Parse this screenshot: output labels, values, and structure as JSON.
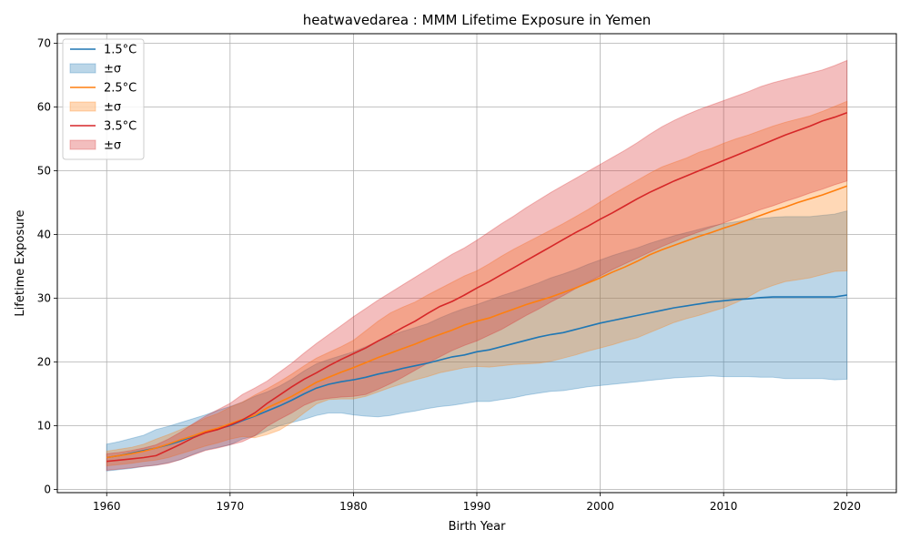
{
  "chart_data": {
    "type": "area",
    "title": "heatwavedarea : MMM Lifetime Exposure in Yemen",
    "xlabel": "Birth Year",
    "ylabel": "Lifetime Exposure",
    "xlim": [
      1956,
      2024
    ],
    "ylim": [
      -0.5,
      71.5
    ],
    "xticks": [
      1960,
      1970,
      1980,
      1990,
      2000,
      2010,
      2020
    ],
    "yticks": [
      0,
      10,
      20,
      30,
      40,
      50,
      60,
      70
    ],
    "grid": true,
    "legend_position": "upper-left",
    "x": [
      1960,
      1961,
      1962,
      1963,
      1964,
      1965,
      1966,
      1967,
      1968,
      1969,
      1970,
      1971,
      1972,
      1973,
      1974,
      1975,
      1976,
      1977,
      1978,
      1979,
      1980,
      1981,
      1982,
      1983,
      1984,
      1985,
      1986,
      1987,
      1988,
      1989,
      1990,
      1991,
      1992,
      1993,
      1994,
      1995,
      1996,
      1997,
      1998,
      1999,
      2000,
      2001,
      2002,
      2003,
      2004,
      2005,
      2006,
      2007,
      2008,
      2009,
      2010,
      2011,
      2012,
      2013,
      2014,
      2015,
      2016,
      2017,
      2018,
      2019,
      2020
    ],
    "series": [
      {
        "name": "1.5°C",
        "band_label": "±σ",
        "color": "#1f77b4",
        "mean": [
          5.0,
          5.3,
          5.7,
          6.1,
          6.5,
          7.0,
          7.6,
          8.3,
          9.0,
          9.5,
          10.0,
          10.8,
          11.5,
          12.3,
          13.1,
          14.0,
          15.0,
          15.9,
          16.5,
          16.9,
          17.2,
          17.6,
          18.1,
          18.5,
          19.0,
          19.4,
          19.8,
          20.3,
          20.8,
          21.1,
          21.6,
          21.9,
          22.4,
          22.9,
          23.4,
          23.9,
          24.3,
          24.6,
          25.1,
          25.6,
          26.1,
          26.5,
          26.9,
          27.3,
          27.7,
          28.1,
          28.5,
          28.8,
          29.1,
          29.4,
          29.6,
          29.8,
          29.9,
          30.1,
          30.2,
          30.2,
          30.2,
          30.2,
          30.2,
          30.2,
          30.5
        ],
        "upper": [
          7.1,
          7.5,
          8.0,
          8.5,
          9.4,
          9.9,
          10.5,
          11.1,
          11.7,
          12.4,
          13.0,
          13.7,
          14.6,
          15.3,
          16.2,
          17.3,
          18.6,
          19.7,
          20.4,
          21.0,
          21.6,
          22.4,
          23.3,
          24.1,
          24.8,
          25.4,
          26.0,
          26.9,
          27.7,
          28.4,
          29.0,
          29.7,
          30.4,
          31.0,
          31.7,
          32.4,
          33.2,
          33.8,
          34.5,
          35.3,
          36.0,
          36.7,
          37.3,
          37.9,
          38.6,
          39.2,
          39.8,
          40.3,
          40.8,
          41.3,
          41.7,
          42.0,
          42.3,
          42.5,
          42.7,
          42.8,
          42.8,
          42.8,
          43.0,
          43.2,
          43.7
        ],
        "lower": [
          2.9,
          3.1,
          3.3,
          3.6,
          3.8,
          4.2,
          4.7,
          5.5,
          6.2,
          6.6,
          7.0,
          7.9,
          8.4,
          9.2,
          10.0,
          10.5,
          11.0,
          11.6,
          12.0,
          12.0,
          11.7,
          11.5,
          11.4,
          11.6,
          12.0,
          12.3,
          12.7,
          13.0,
          13.2,
          13.5,
          13.8,
          13.8,
          14.1,
          14.4,
          14.8,
          15.1,
          15.4,
          15.5,
          15.8,
          16.1,
          16.3,
          16.5,
          16.7,
          16.9,
          17.1,
          17.3,
          17.5,
          17.6,
          17.7,
          17.8,
          17.7,
          17.7,
          17.7,
          17.6,
          17.6,
          17.4,
          17.4,
          17.4,
          17.4,
          17.2,
          17.3
        ]
      },
      {
        "name": "2.5°C",
        "band_label": "±σ",
        "color": "#ff7f0e",
        "mean": [
          5.0,
          5.3,
          5.6,
          6.0,
          6.5,
          7.1,
          7.8,
          8.4,
          9.1,
          9.6,
          10.3,
          11.0,
          11.6,
          12.8,
          13.7,
          14.6,
          15.7,
          16.8,
          17.6,
          18.4,
          19.1,
          19.9,
          20.7,
          21.4,
          22.1,
          22.8,
          23.6,
          24.3,
          25.0,
          25.8,
          26.4,
          26.9,
          27.6,
          28.3,
          29.0,
          29.6,
          30.2,
          30.9,
          31.6,
          32.4,
          33.2,
          34.1,
          34.9,
          35.8,
          36.8,
          37.6,
          38.3,
          39.0,
          39.7,
          40.3,
          41.0,
          41.6,
          42.3,
          43.0,
          43.7,
          44.3,
          45.0,
          45.6,
          46.2,
          46.9,
          47.6
        ],
        "upper": [
          6.0,
          6.3,
          6.6,
          7.1,
          7.9,
          8.6,
          9.4,
          10.2,
          11.2,
          11.9,
          12.9,
          13.7,
          14.8,
          15.8,
          16.9,
          18.1,
          19.4,
          20.6,
          21.5,
          22.4,
          23.4,
          24.9,
          26.4,
          27.7,
          28.6,
          29.4,
          30.5,
          31.5,
          32.5,
          33.5,
          34.3,
          35.4,
          36.6,
          37.7,
          38.7,
          39.7,
          40.7,
          41.7,
          42.8,
          43.9,
          45.1,
          46.3,
          47.4,
          48.5,
          49.6,
          50.6,
          51.3,
          52.0,
          52.9,
          53.5,
          54.3,
          55.0,
          55.6,
          56.3,
          57.0,
          57.6,
          58.1,
          58.6,
          59.3,
          60.1,
          60.9
        ],
        "lower": [
          3.7,
          3.9,
          4.1,
          4.4,
          4.6,
          5.0,
          5.6,
          6.2,
          6.8,
          7.3,
          7.9,
          8.3,
          8.1,
          8.6,
          9.3,
          10.5,
          12.0,
          13.4,
          14.1,
          14.2,
          14.2,
          14.6,
          15.3,
          16.0,
          16.6,
          17.2,
          17.7,
          18.3,
          18.7,
          19.1,
          19.3,
          19.2,
          19.4,
          19.6,
          19.7,
          19.8,
          20.1,
          20.6,
          21.1,
          21.7,
          22.2,
          22.7,
          23.3,
          23.8,
          24.6,
          25.4,
          26.2,
          26.8,
          27.3,
          27.9,
          28.5,
          29.3,
          30.2,
          31.3,
          32.0,
          32.6,
          32.9,
          33.2,
          33.7,
          34.2,
          34.3
        ]
      },
      {
        "name": "3.5°C",
        "band_label": "±σ",
        "color": "#d62728",
        "mean": [
          4.4,
          4.6,
          4.8,
          5.0,
          5.3,
          6.2,
          7.1,
          8.1,
          8.9,
          9.4,
          10.1,
          10.9,
          12.0,
          13.5,
          14.8,
          16.1,
          17.3,
          18.3,
          19.4,
          20.4,
          21.3,
          22.2,
          23.3,
          24.3,
          25.4,
          26.4,
          27.6,
          28.7,
          29.5,
          30.5,
          31.6,
          32.6,
          33.7,
          34.8,
          35.9,
          37.0,
          38.1,
          39.2,
          40.3,
          41.3,
          42.4,
          43.4,
          44.5,
          45.6,
          46.6,
          47.5,
          48.4,
          49.2,
          50.0,
          50.8,
          51.6,
          52.4,
          53.2,
          54.0,
          54.8,
          55.6,
          56.3,
          57.0,
          57.8,
          58.4,
          59.1
        ],
        "upper": [
          5.6,
          5.8,
          6.1,
          6.5,
          7.0,
          7.9,
          9.0,
          10.3,
          11.5,
          12.5,
          13.5,
          14.9,
          15.9,
          17.0,
          18.4,
          19.8,
          21.4,
          22.9,
          24.3,
          25.7,
          27.1,
          28.4,
          29.7,
          30.9,
          32.1,
          33.3,
          34.5,
          35.7,
          36.9,
          37.9,
          39.1,
          40.4,
          41.7,
          42.9,
          44.2,
          45.4,
          46.6,
          47.7,
          48.8,
          49.9,
          51.0,
          52.1,
          53.2,
          54.4,
          55.7,
          56.9,
          57.9,
          58.8,
          59.6,
          60.3,
          61.0,
          61.7,
          62.4,
          63.2,
          63.8,
          64.3,
          64.8,
          65.3,
          65.8,
          66.5,
          67.3
        ],
        "lower": [
          3.0,
          3.2,
          3.4,
          3.6,
          3.8,
          4.1,
          4.7,
          5.4,
          6.1,
          6.5,
          7.0,
          7.5,
          8.4,
          9.9,
          11.0,
          12.0,
          13.2,
          14.0,
          14.3,
          14.5,
          14.6,
          14.9,
          15.7,
          16.6,
          17.6,
          18.7,
          19.8,
          20.8,
          21.8,
          22.6,
          23.3,
          24.2,
          25.1,
          26.2,
          27.3,
          28.3,
          29.4,
          30.4,
          31.5,
          32.5,
          33.5,
          34.5,
          35.4,
          36.3,
          37.2,
          38.1,
          38.9,
          39.7,
          40.4,
          41.1,
          41.8,
          42.5,
          43.2,
          43.9,
          44.5,
          45.2,
          45.8,
          46.5,
          47.1,
          47.8,
          48.4
        ]
      }
    ]
  }
}
